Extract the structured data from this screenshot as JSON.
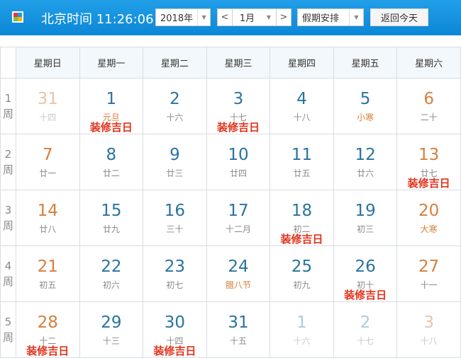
{
  "header": {
    "title": "北京时间 11:26:06",
    "year": "2018年",
    "month": "1月",
    "holiday": "假期安排",
    "prev": "<",
    "next": ">",
    "today_button": "返回今天"
  },
  "colors": {
    "header_blue": "#1593df",
    "weekday": "#2a73a0",
    "weekend": "#d67f3c",
    "tag": "#e3321b"
  },
  "weekdays": [
    "星期日",
    "星期一",
    "星期二",
    "星期三",
    "星期四",
    "星期五",
    "星期六"
  ],
  "weeks": [
    {
      "label": [
        "1",
        "周"
      ],
      "days": [
        {
          "d": "31",
          "l": "十四",
          "other": true
        },
        {
          "d": "1",
          "l": "元旦",
          "fest": true,
          "tag": "装修吉日"
        },
        {
          "d": "2",
          "l": "十六"
        },
        {
          "d": "3",
          "l": "十七",
          "tag": "装修吉日"
        },
        {
          "d": "4",
          "l": "十八"
        },
        {
          "d": "5",
          "l": "小寒",
          "fest": true
        },
        {
          "d": "6",
          "l": "二十"
        }
      ]
    },
    {
      "label": [
        "2",
        "周"
      ],
      "days": [
        {
          "d": "7",
          "l": "廿一"
        },
        {
          "d": "8",
          "l": "廿二"
        },
        {
          "d": "9",
          "l": "廿三"
        },
        {
          "d": "10",
          "l": "廿四"
        },
        {
          "d": "11",
          "l": "廿五"
        },
        {
          "d": "12",
          "l": "廿六"
        },
        {
          "d": "13",
          "l": "廿七",
          "tag": "装修吉日"
        }
      ]
    },
    {
      "label": [
        "3",
        "周"
      ],
      "days": [
        {
          "d": "14",
          "l": "廿八"
        },
        {
          "d": "15",
          "l": "廿九"
        },
        {
          "d": "16",
          "l": "三十"
        },
        {
          "d": "17",
          "l": "十二月"
        },
        {
          "d": "18",
          "l": "初二",
          "tag": "装修吉日"
        },
        {
          "d": "19",
          "l": "初三"
        },
        {
          "d": "20",
          "l": "大寒",
          "fest": true
        }
      ]
    },
    {
      "label": [
        "4",
        "周"
      ],
      "days": [
        {
          "d": "21",
          "l": "初五"
        },
        {
          "d": "22",
          "l": "初六"
        },
        {
          "d": "23",
          "l": "初七"
        },
        {
          "d": "24",
          "l": "腊八节",
          "fest": true
        },
        {
          "d": "25",
          "l": "初九"
        },
        {
          "d": "26",
          "l": "初十",
          "tag": "装修吉日"
        },
        {
          "d": "27",
          "l": "十一"
        }
      ]
    },
    {
      "label": [
        "5",
        "周"
      ],
      "days": [
        {
          "d": "28",
          "l": "十二",
          "tag": "装修吉日"
        },
        {
          "d": "29",
          "l": "十三"
        },
        {
          "d": "30",
          "l": "十四",
          "tag": "装修吉日"
        },
        {
          "d": "31",
          "l": "十五"
        },
        {
          "d": "1",
          "l": "十六",
          "other": true
        },
        {
          "d": "2",
          "l": "十七",
          "other": true
        },
        {
          "d": "3",
          "l": "十八",
          "other": true
        }
      ]
    }
  ]
}
